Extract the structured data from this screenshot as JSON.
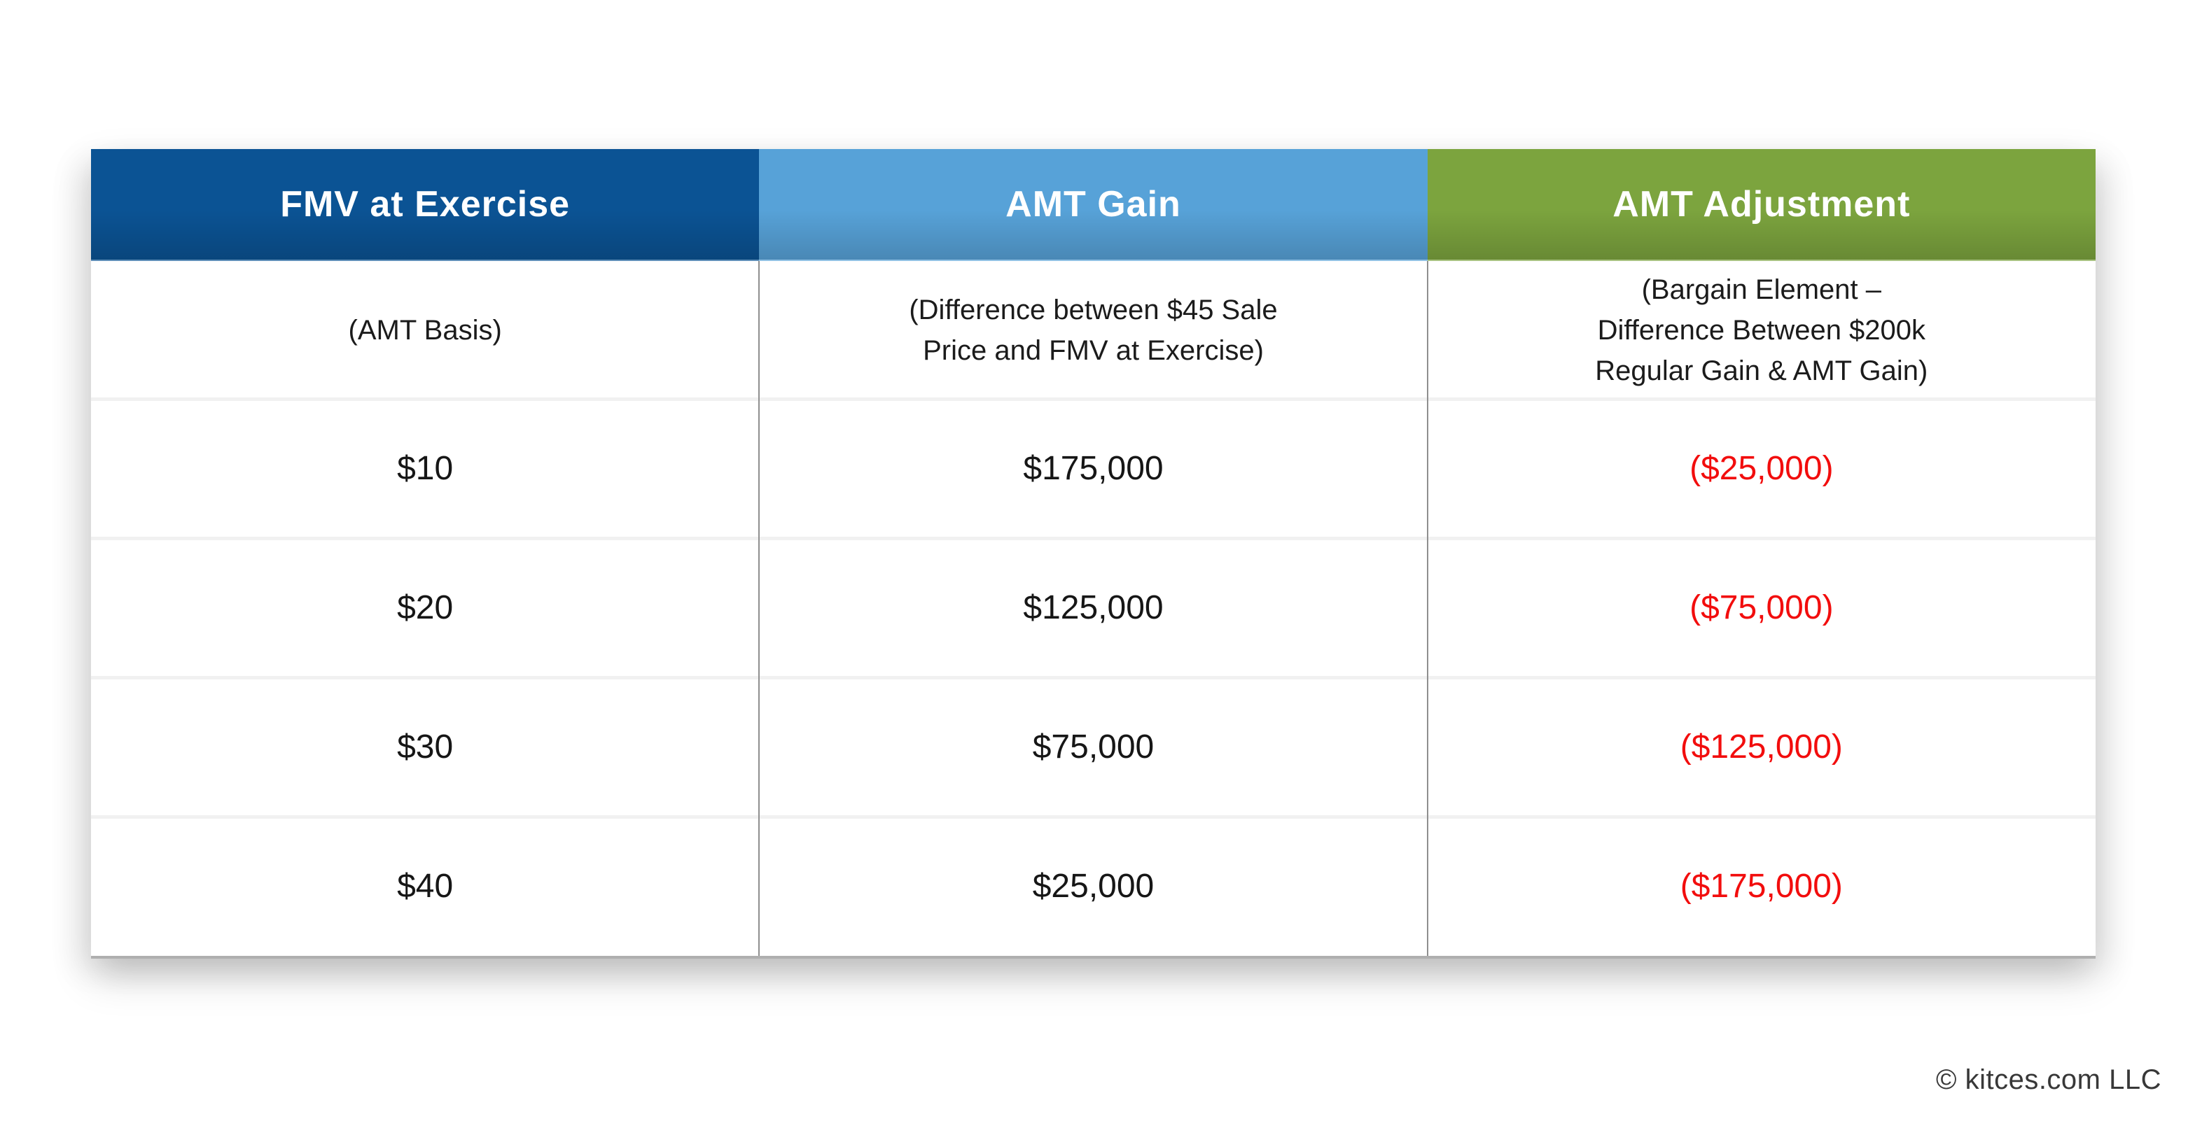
{
  "palette": {
    "header_dark_blue": "#0B5394",
    "header_light_blue": "#57A2D8",
    "header_green": "#7CA43E",
    "negative_value_red": "#F20D0D",
    "column_divider_gray": "#8F8F8F",
    "row_separator_gray": "#F1F1F1",
    "table_bottom_border": "#AFAFAF"
  },
  "table": {
    "columns": [
      {
        "header": "FMV at Exercise",
        "header_bg": "#0B5394",
        "subheader_lines": [
          "(AMT Basis)"
        ]
      },
      {
        "header": "AMT Gain",
        "header_bg": "#57A2D8",
        "subheader_lines": [
          "(Difference between $45 Sale",
          "Price and FMV at Exercise)"
        ]
      },
      {
        "header": "AMT Adjustment",
        "header_bg": "#7CA43E",
        "subheader_lines": [
          "(Bargain Element –",
          "Difference Between $200k",
          "Regular Gain & AMT Gain)"
        ]
      }
    ],
    "rows": [
      {
        "fmv": "$10",
        "amt_gain": "$175,000",
        "amt_adjustment": "($25,000)"
      },
      {
        "fmv": "$20",
        "amt_gain": "$125,000",
        "amt_adjustment": "($75,000)"
      },
      {
        "fmv": "$30",
        "amt_gain": "$75,000",
        "amt_adjustment": "($125,000)"
      },
      {
        "fmv": "$40",
        "amt_gain": "$25,000",
        "amt_adjustment": "($175,000)"
      }
    ]
  },
  "chart_data": {
    "type": "table",
    "columns": [
      "FMV at Exercise (AMT Basis)",
      "AMT Gain (Difference between $45 Sale Price and FMV at Exercise)",
      "AMT Adjustment (Bargain Element – Difference Between $200k Regular Gain & AMT Gain)"
    ],
    "rows": [
      [
        "$10",
        "$175,000",
        "($25,000)"
      ],
      [
        "$20",
        "$125,000",
        "($75,000)"
      ],
      [
        "$30",
        "$75,000",
        "($125,000)"
      ],
      [
        "$40",
        "$25,000",
        "($175,000)"
      ]
    ],
    "notes": "AMT Adjustment values are negative (shown in red, parenthesized)"
  },
  "footer": {
    "copyright": "© kitces.com LLC"
  }
}
